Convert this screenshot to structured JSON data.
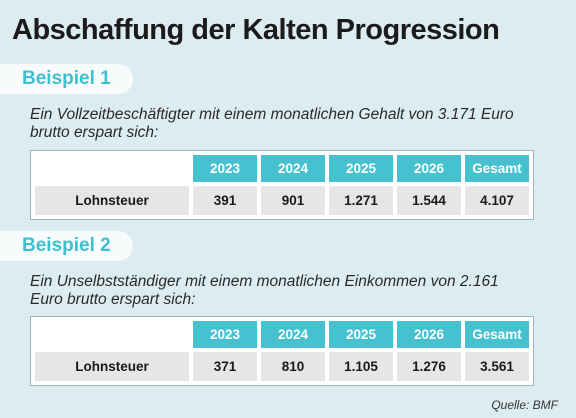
{
  "title": "Abschaffung der Kalten Progression",
  "examples": [
    {
      "label": "Beispiel 1",
      "description": "Ein Vollzeitbeschäftigter mit einem monatlichen Gehalt von 3.171 Euro brutto erspart sich:",
      "headers": [
        "2023",
        "2024",
        "2025",
        "2026",
        "Gesamt"
      ],
      "row_label": "Lohnsteuer",
      "values": [
        "391",
        "901",
        "1.271",
        "1.544",
        "4.107"
      ]
    },
    {
      "label": "Beispiel 2",
      "description": "Ein Unselbstständiger mit einem monatlichen Einkommen von 2.161 Euro brutto erspart sich:",
      "headers": [
        "2023",
        "2024",
        "2025",
        "2026",
        "Gesamt"
      ],
      "row_label": "Lohnsteuer",
      "values": [
        "371",
        "810",
        "1.105",
        "1.276",
        "3.561"
      ]
    }
  ],
  "source": "Quelle: BMF",
  "colors": {
    "background": "#dcecf0",
    "accent": "#47c1d0",
    "label_text": "#3dc0d0"
  }
}
